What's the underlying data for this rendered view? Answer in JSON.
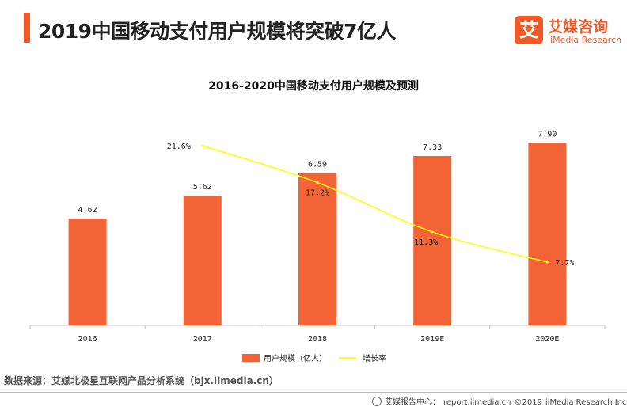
{
  "page": {
    "title": "2019中国移动支付用户规模将突破7亿人",
    "source": "数据来源：艾媒北极星互联网产品分析系统（bjx.iimedia.cn）"
  },
  "logo": {
    "icon_char": "艾",
    "name_cn": "艾媒咨询",
    "name_en": "iiMedia Research"
  },
  "footer": {
    "label": "艾媒报告中心：",
    "url": "report.iimedia.cn",
    "copyright": "©2019",
    "company": "iiMedia Research Inc"
  },
  "colors": {
    "accent": "#f05a28",
    "bar": "#f26436",
    "line": "#ffff00",
    "axis": "#bfbfbf"
  },
  "chart_data": {
    "type": "bar",
    "title": "2016-2020中国移动支付用户规模及预测",
    "categories": [
      "2016",
      "2017",
      "2018",
      "2019E",
      "2020E"
    ],
    "series": [
      {
        "name": "用户规模（亿人）",
        "type": "bar",
        "values": [
          4.62,
          5.62,
          6.59,
          7.33,
          7.9
        ],
        "labels": [
          "4.62",
          "5.62",
          "6.59",
          "7.33",
          "7.90"
        ]
      },
      {
        "name": "增长率",
        "type": "line",
        "values": [
          null,
          21.6,
          17.2,
          11.3,
          7.7
        ],
        "labels": [
          "",
          "21.6%",
          "17.2%",
          "11.3%",
          "7.7%"
        ]
      }
    ],
    "ylim": [
      0,
      10.5
    ],
    "y2lim": [
      0,
      30
    ],
    "grid": false,
    "legend": "bottom"
  }
}
